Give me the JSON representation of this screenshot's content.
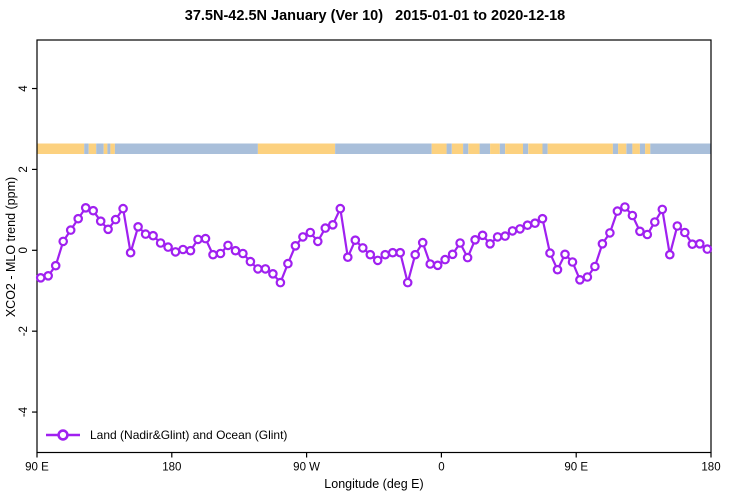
{
  "window": {
    "background": "#ffffff"
  },
  "chart_data": {
    "type": "line",
    "title": "37.5N-42.5N January (Ver 10)   2015-01-01 to 2020-12-18",
    "xlabel": "Longitude (deg E)",
    "ylabel": "XCO2 - MLO trend (ppm)",
    "xlim": [
      90,
      540
    ],
    "ylim": [
      -5.0,
      5.2
    ],
    "grid": false,
    "x_ticks": [
      {
        "value": 90,
        "label": "90 E"
      },
      {
        "value": 180,
        "label": "180"
      },
      {
        "value": 270,
        "label": "90 W"
      },
      {
        "value": 360,
        "label": "0"
      },
      {
        "value": 450,
        "label": "90 E"
      },
      {
        "value": 540,
        "label": "180"
      }
    ],
    "y_ticks": [
      {
        "value": 4,
        "label": "4"
      },
      {
        "value": 2,
        "label": "2"
      },
      {
        "value": 0,
        "label": "0"
      },
      {
        "value": -2,
        "label": "-2"
      },
      {
        "value": -4,
        "label": "-4"
      }
    ],
    "series": [
      {
        "name": "Land (Nadir&Glint) and Ocean (Glint)",
        "color": "#A020F0",
        "marker": "open-circle",
        "x": [
          92.5,
          97.5,
          102.5,
          107.5,
          112.5,
          117.5,
          122.5,
          127.5,
          132.5,
          137.5,
          142.5,
          147.5,
          152.5,
          157.5,
          162.5,
          167.5,
          172.5,
          177.5,
          182.5,
          187.5,
          192.5,
          197.5,
          202.5,
          207.5,
          212.5,
          217.5,
          222.5,
          227.5,
          232.5,
          237.5,
          242.5,
          247.5,
          252.5,
          257.5,
          262.5,
          267.5,
          272.5,
          277.5,
          282.5,
          287.5,
          292.5,
          297.5,
          302.5,
          307.5,
          312.5,
          317.5,
          322.5,
          327.5,
          332.5,
          337.5,
          342.5,
          347.5,
          352.5,
          357.5,
          362.5,
          367.5,
          372.5,
          377.5,
          382.5,
          387.5,
          392.5,
          397.5,
          402.5,
          407.5,
          412.5,
          417.5,
          422.5,
          427.5,
          432.5,
          437.5,
          442.5,
          447.5,
          452.5,
          457.5,
          462.5,
          467.5,
          472.5,
          477.5,
          482.5,
          487.5,
          492.5,
          497.5,
          502.5,
          507.5,
          512.5,
          517.5,
          522.5,
          527.5,
          532.5,
          537.5
        ],
        "y": [
          -0.68,
          -0.63,
          -0.38,
          0.22,
          0.5,
          0.78,
          1.05,
          0.98,
          0.72,
          0.52,
          0.76,
          1.03,
          -0.06,
          0.58,
          0.4,
          0.36,
          0.18,
          0.08,
          -0.04,
          0.02,
          -0.01,
          0.27,
          0.29,
          -0.11,
          -0.08,
          0.12,
          -0.01,
          -0.08,
          -0.28,
          -0.46,
          -0.46,
          -0.58,
          -0.8,
          -0.33,
          0.11,
          0.33,
          0.44,
          0.22,
          0.55,
          0.63,
          1.03,
          -0.17,
          0.25,
          0.06,
          -0.11,
          -0.25,
          -0.11,
          -0.06,
          -0.06,
          -0.8,
          -0.11,
          0.19,
          -0.34,
          -0.37,
          -0.23,
          -0.1,
          0.18,
          -0.18,
          0.26,
          0.37,
          0.16,
          0.33,
          0.35,
          0.48,
          0.53,
          0.62,
          0.67,
          0.78,
          -0.07,
          -0.48,
          -0.1,
          -0.29,
          -0.73,
          -0.66,
          -0.4,
          0.16,
          0.43,
          0.97,
          1.07,
          0.86,
          0.47,
          0.39,
          0.7,
          1.01,
          -0.11,
          0.6,
          0.44,
          0.15,
          0.16,
          0.03
        ]
      }
    ],
    "land_ocean_strip": {
      "description": "land/ocean map strip along longitude",
      "y_range": [
        2.38,
        2.64
      ],
      "land_color": "#FCD17F",
      "ocean_color": "#A9BFDA",
      "segments": [
        [
          90,
          121.5,
          "land"
        ],
        [
          121.5,
          124.5,
          "ocean"
        ],
        [
          124.5,
          129.5,
          "land"
        ],
        [
          129.5,
          134.5,
          "ocean"
        ],
        [
          134.5,
          137,
          "land"
        ],
        [
          137,
          139,
          "ocean"
        ],
        [
          139,
          142,
          "land"
        ],
        [
          142,
          237.5,
          "ocean"
        ],
        [
          237.5,
          289,
          "land"
        ],
        [
          289,
          353.5,
          "ocean"
        ],
        [
          353.5,
          363.5,
          "land"
        ],
        [
          363.5,
          367,
          "ocean"
        ],
        [
          367,
          374.5,
          "land"
        ],
        [
          374.5,
          378,
          "ocean"
        ],
        [
          378,
          385.5,
          "land"
        ],
        [
          385.5,
          392.5,
          "ocean"
        ],
        [
          392.5,
          399,
          "land"
        ],
        [
          399,
          402.5,
          "ocean"
        ],
        [
          402.5,
          414.5,
          "land"
        ],
        [
          414.5,
          418,
          "ocean"
        ],
        [
          418,
          427.5,
          "land"
        ],
        [
          427.5,
          431,
          "ocean"
        ],
        [
          431,
          474.5,
          "land"
        ],
        [
          474.5,
          478,
          "ocean"
        ],
        [
          478,
          483.5,
          "land"
        ],
        [
          483.5,
          487.5,
          "ocean"
        ],
        [
          487.5,
          492.5,
          "land"
        ],
        [
          492.5,
          496,
          "ocean"
        ],
        [
          496,
          499.5,
          "land"
        ],
        [
          499.5,
          540,
          "ocean"
        ]
      ]
    },
    "legend": {
      "position": "bottom-left",
      "entries": [
        {
          "label": "Land (Nadir&Glint) and Ocean (Glint)",
          "color": "#A020F0",
          "marker": "open-circle"
        }
      ]
    }
  }
}
